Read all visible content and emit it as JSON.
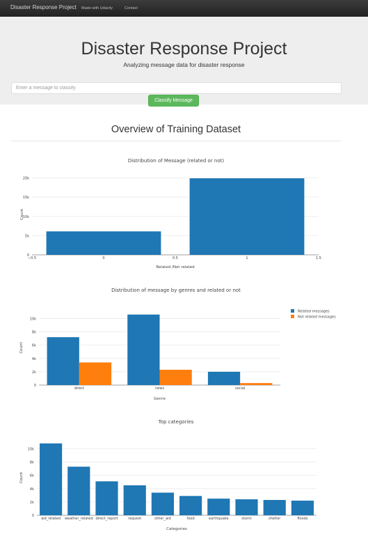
{
  "navbar": {
    "brand": "Disaster Response Project",
    "links": [
      "Made with Udacity",
      "Contact"
    ]
  },
  "header": {
    "title": "Disaster Response Project",
    "subtitle": "Analyzing message data for disaster response",
    "input_placeholder": "Enter a message to classify",
    "button_label": "Classify Message"
  },
  "overview": {
    "title": "Overview of Training Dataset"
  },
  "colors": {
    "blue": "#1f77b4",
    "orange": "#ff7f0e",
    "button_green": "#5cb85c"
  },
  "chart_data": [
    {
      "type": "bar",
      "title": "Distribution of Message (related or not)",
      "xlabel": "Related /Not related",
      "ylabel": "Count",
      "x": [
        0,
        1
      ],
      "values": [
        6100,
        19900
      ],
      "xlim": [
        -0.5,
        1.5
      ],
      "ylim": [
        0,
        21000
      ],
      "xticks": [
        "−0.5",
        "0",
        "0.5",
        "1",
        "1.5"
      ],
      "yticks": [
        "0",
        "5k",
        "10k",
        "15k",
        "20k"
      ],
      "grid": true
    },
    {
      "type": "bar",
      "title": "Distribution of message by genres and related or not",
      "xlabel": "Genre",
      "ylabel": "Count",
      "categories": [
        "direct",
        "news",
        "social"
      ],
      "series": [
        {
          "name": "Related messages",
          "values": [
            7200,
            10600,
            2000
          ]
        },
        {
          "name": "Not related messages",
          "values": [
            3400,
            2300,
            300
          ]
        }
      ],
      "ylim": [
        0,
        11200
      ],
      "yticks": [
        "0",
        "2k",
        "4k",
        "6k",
        "8k",
        "10k"
      ],
      "legend": "top-right",
      "grid": true
    },
    {
      "type": "bar",
      "title": "Top categories",
      "xlabel": "Categories",
      "ylabel": "Count",
      "categories": [
        "aid_related",
        "weather_related",
        "direct_report",
        "request",
        "other_aid",
        "food",
        "earthquake",
        "storm",
        "shelter",
        "floods"
      ],
      "values": [
        10800,
        7300,
        5100,
        4500,
        3400,
        2900,
        2500,
        2400,
        2300,
        2200
      ],
      "ylim": [
        0,
        11300
      ],
      "yticks": [
        "0",
        "2k",
        "4k",
        "6k",
        "8k",
        "10k"
      ],
      "grid": true
    }
  ]
}
